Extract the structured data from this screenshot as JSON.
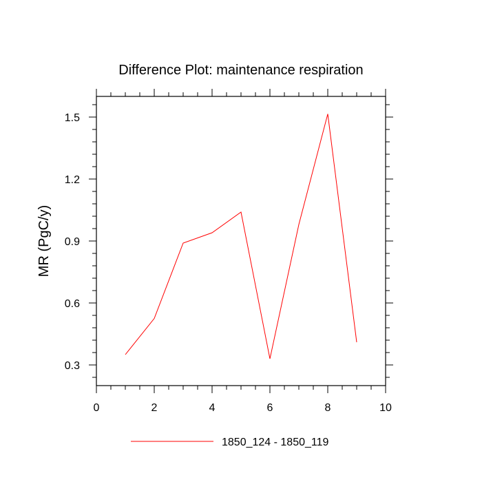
{
  "chart_data": {
    "type": "line",
    "title": "Difference Plot: maintenance respiration",
    "xlabel": "",
    "ylabel": "MR  (PgC/y)",
    "xlim": [
      0,
      10
    ],
    "ylim": [
      0.2,
      1.6
    ],
    "x_ticks": [
      0,
      2,
      4,
      6,
      8,
      10
    ],
    "x_tick_labels": [
      "0",
      "2",
      "4",
      "6",
      "8",
      "10"
    ],
    "y_ticks": [
      0.3,
      0.6,
      0.9,
      1.2,
      1.5
    ],
    "y_tick_labels": [
      "0.3",
      "0.6",
      "0.9",
      "1.2",
      "1.5"
    ],
    "grid": false,
    "legend_position": "bottom-center",
    "series": [
      {
        "name": "1850_124 - 1850_119",
        "color": "#ff0000",
        "x": [
          1,
          2,
          3,
          4,
          5,
          6,
          7,
          8,
          9
        ],
        "values": [
          0.35,
          0.525,
          0.89,
          0.94,
          1.04,
          0.33,
          0.98,
          1.515,
          0.41
        ]
      }
    ]
  }
}
